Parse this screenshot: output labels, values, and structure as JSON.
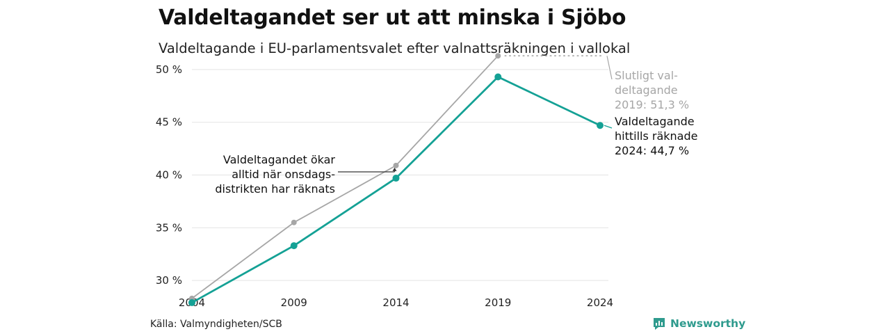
{
  "chart_data": {
    "type": "line",
    "title": "Valdeltagandet ser ut att minska i Sjöbo",
    "subtitle": "Valdeltagande i EU-parlamentsvalet efter valnattsräkningen i vallokal",
    "x": [
      "2004",
      "2009",
      "2014",
      "2019",
      "2024"
    ],
    "ylim": [
      27.5,
      52.5
    ],
    "yticks": [
      30,
      35,
      40,
      45,
      50
    ],
    "ytick_labels": [
      "30 %",
      "35 %",
      "40 %",
      "45 %",
      "50 %"
    ],
    "grid": true,
    "series": [
      {
        "key": "final",
        "color": "#a6a6a6",
        "values": [
          28.3,
          35.5,
          40.9,
          51.3,
          null
        ]
      },
      {
        "key": "counted",
        "color": "#14a195",
        "values": [
          27.9,
          33.3,
          39.7,
          49.3,
          44.7
        ]
      }
    ],
    "annotations": {
      "final_label": [
        "Slutligt val-",
        "deltagande",
        "2019: 51,3 %"
      ],
      "counted_label": [
        "Valdeltagande",
        "hittills räknade",
        "2024: 44,7 %"
      ],
      "note": [
        "Valdeltagandet ökar",
        "alltid när onsdags-",
        "distrikten har räknats"
      ]
    }
  },
  "footer": {
    "source": "Källa: Valmyndigheten/SCB",
    "brand": "Newsworthy",
    "brand_icon": "newsworthy-logo-icon",
    "brand_color": "#2f9b8e"
  }
}
